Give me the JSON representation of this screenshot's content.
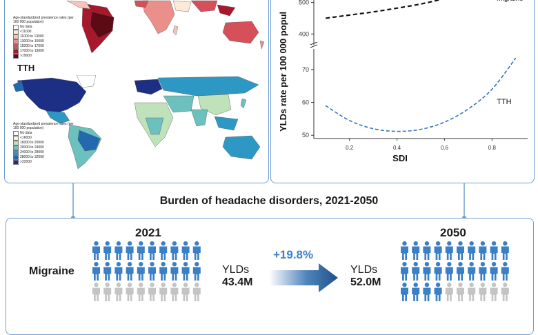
{
  "map_panel": {
    "migraine_legend": {
      "title": "Age-standardized prevalence rates (per 100 000 population)",
      "items": [
        {
          "label": "No data",
          "color": "#ffffff"
        },
        {
          "label": "<11000",
          "color": "#fde9d6"
        },
        {
          "label": "11000 to 13000",
          "color": "#f6c4bc"
        },
        {
          "label": "13000 to 15000",
          "color": "#ea8f8a"
        },
        {
          "label": "15000 to 17000",
          "color": "#d6505a"
        },
        {
          "label": "17000 to 19000",
          "color": "#a8172c"
        },
        {
          "label": ">19000",
          "color": "#5c0a14"
        }
      ]
    },
    "tth_title": "TTH",
    "tth_legend": {
      "title": "Age-standardized prevalence rates (per 100 000 population)",
      "items": [
        {
          "label": "No data",
          "color": "#ffffff"
        },
        {
          "label": "<16000",
          "color": "#eef7d9"
        },
        {
          "label": "16000 to 20000",
          "color": "#bfe2bb"
        },
        {
          "label": "20000 to 24000",
          "color": "#6cc0bd"
        },
        {
          "label": "24000 to 28000",
          "color": "#2e98c4"
        },
        {
          "label": "28000 to 32000",
          "color": "#2369b0"
        },
        {
          "label": ">32000",
          "color": "#1d2f84"
        }
      ]
    }
  },
  "chart_data": {
    "type": "line",
    "xlabel": "SDI",
    "ylabel": "YLDs rate per 100 000 popul",
    "x_ticks": [
      "0.2",
      "0.4",
      "0.6",
      "0.8"
    ],
    "y_ticks_upper": [
      "500",
      "400"
    ],
    "y_ticks_lower": [
      "70",
      "60",
      "50"
    ],
    "xlim": [
      0.05,
      0.95
    ],
    "series": [
      {
        "name": "Migraine",
        "segment": "upper",
        "ylim": [
          370,
          510
        ],
        "color": "#111111",
        "x": [
          0.1,
          0.2,
          0.3,
          0.4,
          0.5,
          0.6
        ],
        "y": [
          450,
          460,
          470,
          482,
          495,
          512
        ]
      },
      {
        "name": "TTH",
        "segment": "lower",
        "ylim": [
          49,
          75
        ],
        "color": "#2f73c0",
        "x": [
          0.1,
          0.2,
          0.3,
          0.4,
          0.5,
          0.6,
          0.7,
          0.8,
          0.9
        ],
        "y": [
          59,
          54.5,
          52,
          51.2,
          51.8,
          54,
          58,
          64,
          73.5
        ]
      }
    ]
  },
  "bottom": {
    "title": "Burden of headache disorders, 2021-2050",
    "year_start": "2021",
    "year_end": "2050",
    "disorder": "Migraine",
    "yld_label": "YLDs",
    "yld_2021": "43.4M",
    "yld_2050": "52.0M",
    "change": "+19.8%",
    "person_color_filled": "#3b7fc4",
    "person_color_empty": "#c4c4c4",
    "people_2021": {
      "filled": 20,
      "total": 30
    },
    "people_2050": {
      "filled": 24,
      "total": 30
    }
  }
}
